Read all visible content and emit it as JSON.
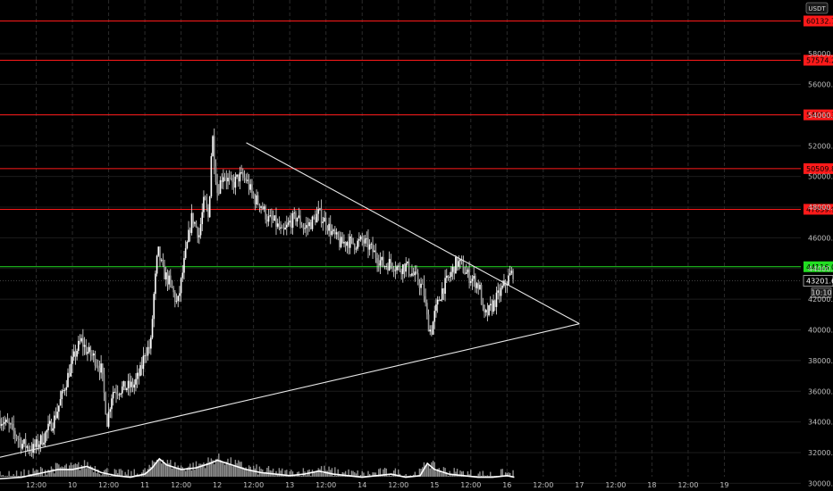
{
  "chart_data": {
    "type": "candlestick",
    "currency": "USDT",
    "ylim": [
      29500,
      61500
    ],
    "y_ticks": [
      30000,
      32000,
      34000,
      36000,
      38000,
      40000,
      42000,
      44000,
      46000,
      48000,
      50000,
      52000,
      54000,
      56000,
      58000
    ],
    "y_tick_labels": [
      "30000.0",
      "32000.0",
      "34000.0",
      "36000.0",
      "38000.0",
      "40000.0",
      "42000.0",
      "44000.0",
      "46000.0",
      "48000.0",
      "50000.0",
      "52000.0",
      "54000.0",
      "56000.0",
      "58000.0"
    ],
    "x_range": [
      "9 00:00",
      "20 12:00"
    ],
    "x_ticks": [
      {
        "t": 9.5,
        "label": "12:00"
      },
      {
        "t": 10,
        "label": "10"
      },
      {
        "t": 10.5,
        "label": "12:00"
      },
      {
        "t": 11,
        "label": "11"
      },
      {
        "t": 11.5,
        "label": "12:00"
      },
      {
        "t": 12,
        "label": "12"
      },
      {
        "t": 12.5,
        "label": "12:00"
      },
      {
        "t": 13,
        "label": "13"
      },
      {
        "t": 13.5,
        "label": "12:00"
      },
      {
        "t": 14,
        "label": "14"
      },
      {
        "t": 14.5,
        "label": "12:00"
      },
      {
        "t": 15,
        "label": "15"
      },
      {
        "t": 15.5,
        "label": "12:00"
      },
      {
        "t": 16,
        "label": "16"
      },
      {
        "t": 16.5,
        "label": "12:00"
      },
      {
        "t": 17,
        "label": "17"
      },
      {
        "t": 17.5,
        "label": "12:00"
      },
      {
        "t": 18,
        "label": "18"
      },
      {
        "t": 18.5,
        "label": "12:00"
      },
      {
        "t": 19,
        "label": "19"
      }
    ],
    "resistance_levels": [
      {
        "value": 60132.7,
        "label": "60132.7",
        "color": "#ff1a1a"
      },
      {
        "value": 57574.2,
        "label": "57574.2",
        "color": "#ff1a1a"
      },
      {
        "value": 54016.3,
        "label": "54016.3",
        "color": "#ff1a1a"
      },
      {
        "value": 50509.8,
        "label": "50509.8",
        "color": "#ff1a1a"
      },
      {
        "value": 47859.9,
        "label": "47859.9",
        "color": "#ff1a1a"
      }
    ],
    "support_level": {
      "value": 44116.0,
      "label": "44116.0",
      "color": "#22dd22"
    },
    "last_price": {
      "value": 43201.6,
      "label": "43201.6",
      "countdown": "10:10"
    },
    "trendlines": [
      {
        "name": "upper",
        "from": {
          "t": 12.4,
          "y": 52200
        },
        "to": {
          "t": 17.0,
          "y": 40400
        }
      },
      {
        "name": "lower",
        "from": {
          "t": 9.0,
          "y": 31700
        },
        "to": {
          "t": 17.0,
          "y": 40400
        }
      }
    ],
    "price_path": [
      [
        9.0,
        34200
      ],
      [
        9.15,
        33600
      ],
      [
        9.3,
        32600
      ],
      [
        9.45,
        32200
      ],
      [
        9.6,
        33000
      ],
      [
        9.75,
        34200
      ],
      [
        9.85,
        35600
      ],
      [
        9.95,
        37200
      ],
      [
        10.05,
        38600
      ],
      [
        10.12,
        39300
      ],
      [
        10.2,
        38600
      ],
      [
        10.3,
        38200
      ],
      [
        10.4,
        37400
      ],
      [
        10.48,
        34000
      ],
      [
        10.55,
        36000
      ],
      [
        10.7,
        36200
      ],
      [
        10.85,
        36400
      ],
      [
        10.95,
        37400
      ],
      [
        11.0,
        38600
      ],
      [
        11.08,
        38900
      ],
      [
        11.12,
        42000
      ],
      [
        11.18,
        45200
      ],
      [
        11.25,
        43800
      ],
      [
        11.35,
        43000
      ],
      [
        11.45,
        41600
      ],
      [
        11.55,
        44600
      ],
      [
        11.65,
        47400
      ],
      [
        11.75,
        46200
      ],
      [
        11.82,
        48500
      ],
      [
        11.88,
        47200
      ],
      [
        11.93,
        53000
      ],
      [
        11.96,
        51000
      ],
      [
        12.0,
        49000
      ],
      [
        12.08,
        50200
      ],
      [
        12.2,
        49400
      ],
      [
        12.3,
        50000
      ],
      [
        12.4,
        49800
      ],
      [
        12.5,
        48600
      ],
      [
        12.6,
        48200
      ],
      [
        12.7,
        47200
      ],
      [
        12.8,
        47000
      ],
      [
        12.9,
        46200
      ],
      [
        13.0,
        47000
      ],
      [
        13.1,
        47400
      ],
      [
        13.2,
        46600
      ],
      [
        13.3,
        47000
      ],
      [
        13.4,
        47600
      ],
      [
        13.5,
        47000
      ],
      [
        13.6,
        46200
      ],
      [
        13.7,
        45600
      ],
      [
        13.8,
        45800
      ],
      [
        13.9,
        45600
      ],
      [
        14.0,
        45800
      ],
      [
        14.1,
        45400
      ],
      [
        14.2,
        44800
      ],
      [
        14.3,
        44200
      ],
      [
        14.4,
        44400
      ],
      [
        14.5,
        44000
      ],
      [
        14.6,
        44200
      ],
      [
        14.7,
        43600
      ],
      [
        14.8,
        43000
      ],
      [
        14.85,
        42500
      ],
      [
        14.9,
        40600
      ],
      [
        14.95,
        39800
      ],
      [
        15.0,
        41000
      ],
      [
        15.1,
        42600
      ],
      [
        15.2,
        43400
      ],
      [
        15.3,
        44400
      ],
      [
        15.35,
        44300
      ],
      [
        15.45,
        43600
      ],
      [
        15.55,
        43200
      ],
      [
        15.62,
        42800
      ],
      [
        15.68,
        40800
      ],
      [
        15.75,
        41200
      ],
      [
        15.85,
        42000
      ],
      [
        15.95,
        42800
      ],
      [
        16.05,
        43600
      ],
      [
        16.1,
        43800
      ]
    ],
    "volume_path": [
      [
        9.0,
        30300
      ],
      [
        9.3,
        30400
      ],
      [
        9.6,
        30700
      ],
      [
        9.8,
        30900
      ],
      [
        10.0,
        30900
      ],
      [
        10.2,
        31100
      ],
      [
        10.4,
        30700
      ],
      [
        10.6,
        30500
      ],
      [
        10.8,
        30400
      ],
      [
        11.0,
        30600
      ],
      [
        11.1,
        31000
      ],
      [
        11.2,
        31600
      ],
      [
        11.3,
        31200
      ],
      [
        11.5,
        30900
      ],
      [
        11.7,
        31000
      ],
      [
        11.9,
        31300
      ],
      [
        12.0,
        31500
      ],
      [
        12.2,
        31200
      ],
      [
        12.4,
        30900
      ],
      [
        12.6,
        30700
      ],
      [
        12.8,
        30600
      ],
      [
        13.0,
        30500
      ],
      [
        13.2,
        30600
      ],
      [
        13.4,
        30800
      ],
      [
        13.6,
        30600
      ],
      [
        13.8,
        30500
      ],
      [
        14.0,
        30400
      ],
      [
        14.2,
        30500
      ],
      [
        14.4,
        30600
      ],
      [
        14.6,
        30400
      ],
      [
        14.8,
        30500
      ],
      [
        14.9,
        31300
      ],
      [
        15.0,
        30900
      ],
      [
        15.2,
        30600
      ],
      [
        15.4,
        30500
      ],
      [
        15.6,
        30400
      ],
      [
        15.8,
        30400
      ],
      [
        16.0,
        30500
      ],
      [
        16.1,
        30400
      ]
    ]
  }
}
